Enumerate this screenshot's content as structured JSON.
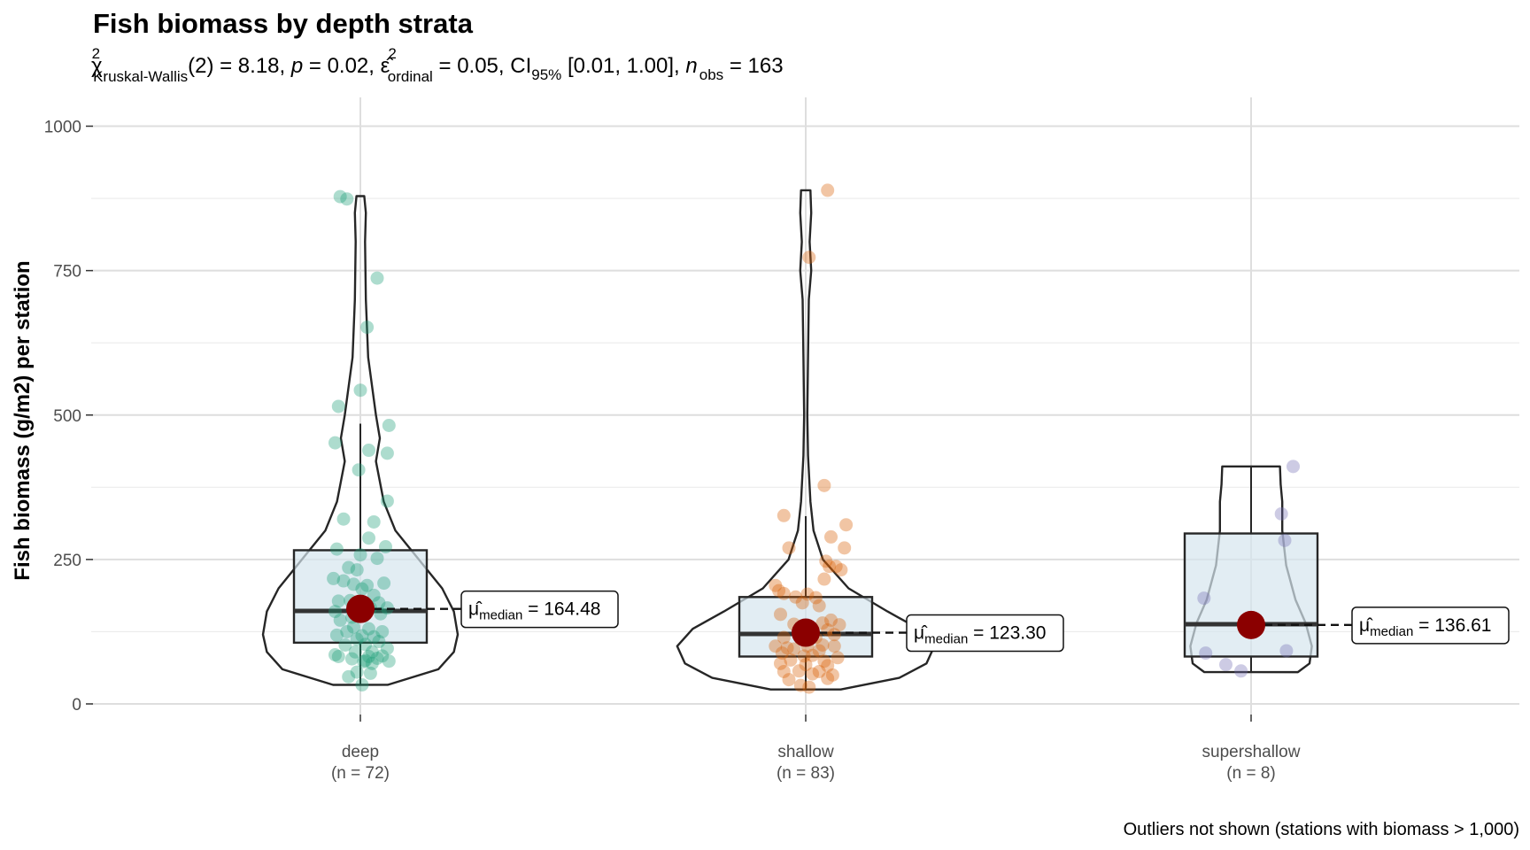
{
  "chart_data": {
    "type": "violin-box-scatter",
    "title": "Fish biomass by depth strata",
    "subtitle": {
      "chi_label": "χ",
      "chi_sup": "2",
      "test_sub": "Kruskal-Wallis",
      "statistic": "(2) = 8.18, ",
      "p_label": "p",
      "p_text": " = 0.02, ",
      "eps_label": "ε̂",
      "eps_sup": "2",
      "eps_sub": "ordinal",
      "eps_text": " = 0.05, CI",
      "ci_sub": "95%",
      "ci_text": " [0.01, 1.00], ",
      "n_label": "n",
      "n_sub": "obs",
      "n_text": " = 163"
    },
    "ylabel": "Fish biomass (g/m2) per station",
    "ylim": [
      -45,
      1050
    ],
    "yticks": [
      0,
      250,
      500,
      750,
      1000
    ],
    "minor_gridlines": [
      125,
      375,
      625,
      875
    ],
    "caption": "Outliers not shown (stations with biomass > 1,000)",
    "stat_label_text": {
      "mu": "μ̂",
      "sub": "median",
      "eq": " = "
    },
    "mean_point_color": "#8b0000",
    "box_fill": "#d6e6ee",
    "groups": [
      {
        "name": "deep",
        "count_label": "(n = 72)",
        "color": "#1b9e77",
        "box": {
          "q1": 106,
          "median": 161,
          "q3": 266,
          "whisker_low": 33,
          "whisker_high": 485
        },
        "median_label": "164.48",
        "median_value": 164.48,
        "violin": [
          [
            33,
            0.35
          ],
          [
            60,
            1.0
          ],
          [
            90,
            1.2
          ],
          [
            120,
            1.25
          ],
          [
            160,
            1.2
          ],
          [
            200,
            1.05
          ],
          [
            250,
            0.75
          ],
          [
            300,
            0.45
          ],
          [
            350,
            0.3
          ],
          [
            420,
            0.2
          ],
          [
            460,
            0.25
          ],
          [
            500,
            0.2
          ],
          [
            600,
            0.1
          ],
          [
            700,
            0.07
          ],
          [
            800,
            0.06
          ],
          [
            850,
            0.07
          ],
          [
            879,
            0.05
          ]
        ],
        "points": [
          [
            -0.12,
            878
          ],
          [
            -0.08,
            874
          ],
          [
            0.1,
            737
          ],
          [
            0.04,
            652
          ],
          [
            -0.13,
            515
          ],
          [
            0.0,
            543
          ],
          [
            0.17,
            482
          ],
          [
            -0.15,
            452
          ],
          [
            0.05,
            439
          ],
          [
            0.16,
            434
          ],
          [
            -0.01,
            405
          ],
          [
            0.16,
            351
          ],
          [
            -0.1,
            320
          ],
          [
            0.08,
            315
          ],
          [
            0.15,
            272
          ],
          [
            0.05,
            287
          ],
          [
            -0.14,
            268
          ],
          [
            0.1,
            252
          ],
          [
            0.0,
            258
          ],
          [
            -0.07,
            236
          ],
          [
            -0.02,
            232
          ],
          [
            0.14,
            209
          ],
          [
            -0.16,
            217
          ],
          [
            -0.1,
            213
          ],
          [
            0.04,
            205
          ],
          [
            -0.04,
            207
          ],
          [
            0.01,
            199
          ],
          [
            0.08,
            188
          ],
          [
            -0.13,
            178
          ],
          [
            -0.06,
            179
          ],
          [
            0.11,
            175
          ],
          [
            0.16,
            166
          ],
          [
            0.06,
            166
          ],
          [
            -0.15,
            160
          ],
          [
            0.12,
            156
          ],
          [
            0.02,
            152
          ],
          [
            -0.05,
            150
          ],
          [
            -0.12,
            145
          ],
          [
            -0.04,
            133
          ],
          [
            0.05,
            130
          ],
          [
            0.13,
            125
          ],
          [
            -0.08,
            125
          ],
          [
            -0.14,
            119
          ],
          [
            0.01,
            118
          ],
          [
            0.08,
            116
          ],
          [
            -0.02,
            112
          ],
          [
            0.11,
            108
          ],
          [
            -0.09,
            102
          ],
          [
            0.03,
            103
          ],
          [
            0.16,
            96
          ],
          [
            -0.03,
            90
          ],
          [
            0.07,
            90
          ],
          [
            -0.15,
            85
          ],
          [
            -0.13,
            82
          ],
          [
            0.13,
            83
          ],
          [
            0.05,
            82
          ],
          [
            0.1,
            79
          ],
          [
            -0.05,
            78
          ],
          [
            0.17,
            74
          ],
          [
            0.02,
            73
          ],
          [
            0.07,
            70
          ],
          [
            0.03,
            75
          ],
          [
            -0.02,
            55
          ],
          [
            0.06,
            53
          ],
          [
            -0.07,
            47
          ],
          [
            0.01,
            33
          ]
        ]
      },
      {
        "name": "shallow",
        "count_label": "(n = 83)",
        "color": "#d95f02",
        "box": {
          "q1": 82,
          "median": 121,
          "q3": 185,
          "whisker_low": 25,
          "whisker_high": 325
        },
        "median_label": "123.30",
        "median_value": 123.3,
        "violin": [
          [
            25,
            0.45
          ],
          [
            45,
            1.2
          ],
          [
            70,
            1.55
          ],
          [
            100,
            1.65
          ],
          [
            130,
            1.45
          ],
          [
            160,
            1.05
          ],
          [
            200,
            0.55
          ],
          [
            250,
            0.22
          ],
          [
            300,
            0.1
          ],
          [
            350,
            0.06
          ],
          [
            430,
            0.03
          ],
          [
            500,
            0.02
          ],
          [
            600,
            0.03
          ],
          [
            700,
            0.04
          ],
          [
            750,
            0.07
          ],
          [
            800,
            0.05
          ],
          [
            850,
            0.07
          ],
          [
            889,
            0.06
          ]
        ],
        "points": [
          [
            0.13,
            889
          ],
          [
            0.02,
            773
          ],
          [
            0.11,
            378
          ],
          [
            -0.13,
            326
          ],
          [
            0.24,
            310
          ],
          [
            0.15,
            289
          ],
          [
            0.23,
            270
          ],
          [
            -0.1,
            270
          ],
          [
            0.18,
            238
          ],
          [
            0.12,
            247
          ],
          [
            0.14,
            238
          ],
          [
            0.21,
            232
          ],
          [
            0.11,
            216
          ],
          [
            -0.18,
            205
          ],
          [
            -0.16,
            196
          ],
          [
            -0.13,
            191
          ],
          [
            0.01,
            190
          ],
          [
            -0.06,
            185
          ],
          [
            0.06,
            184
          ],
          [
            -0.02,
            175
          ],
          [
            0.08,
            170
          ],
          [
            -0.15,
            155
          ],
          [
            0.15,
            145
          ],
          [
            0.2,
            137
          ],
          [
            0.1,
            140
          ],
          [
            -0.07,
            138
          ],
          [
            0.02,
            130
          ],
          [
            0.13,
            128
          ],
          [
            0.17,
            120
          ],
          [
            -0.13,
            115
          ],
          [
            -0.04,
            122
          ],
          [
            0.06,
            115
          ],
          [
            -0.18,
            100
          ],
          [
            -0.11,
            97
          ],
          [
            0.01,
            100
          ],
          [
            0.1,
            102
          ],
          [
            0.17,
            100
          ],
          [
            -0.07,
            95
          ],
          [
            0.08,
            92
          ],
          [
            -0.14,
            88
          ],
          [
            0.19,
            80
          ],
          [
            -0.01,
            83
          ],
          [
            0.04,
            84
          ],
          [
            -0.09,
            76
          ],
          [
            0.11,
            74
          ],
          [
            -0.15,
            70
          ],
          [
            0.13,
            66
          ],
          [
            0.0,
            68
          ],
          [
            -0.04,
            57
          ],
          [
            0.08,
            56
          ],
          [
            -0.13,
            56
          ],
          [
            0.16,
            50
          ],
          [
            0.04,
            52
          ],
          [
            0.13,
            44
          ],
          [
            -0.1,
            42
          ],
          [
            -0.03,
            32
          ],
          [
            0.02,
            29
          ]
        ]
      },
      {
        "name": "supershallow",
        "count_label": "(n = 8)",
        "color": "#7570b3",
        "box": {
          "q1": 82,
          "median": 138,
          "q3": 295,
          "whisker_low": 55,
          "whisker_high": 411
        },
        "median_label": "136.61",
        "median_value": 136.61,
        "violin": [
          [
            55,
            0.6
          ],
          [
            70,
            0.75
          ],
          [
            100,
            0.78
          ],
          [
            140,
            0.7
          ],
          [
            180,
            0.57
          ],
          [
            240,
            0.45
          ],
          [
            300,
            0.4
          ],
          [
            350,
            0.4
          ],
          [
            380,
            0.38
          ],
          [
            411,
            0.37
          ]
        ],
        "points": [
          [
            0.25,
            411
          ],
          [
            0.18,
            329
          ],
          [
            0.2,
            283
          ],
          [
            -0.28,
            183
          ],
          [
            0.21,
            92
          ],
          [
            -0.27,
            88
          ],
          [
            -0.15,
            68
          ],
          [
            -0.06,
            57
          ]
        ]
      }
    ]
  }
}
